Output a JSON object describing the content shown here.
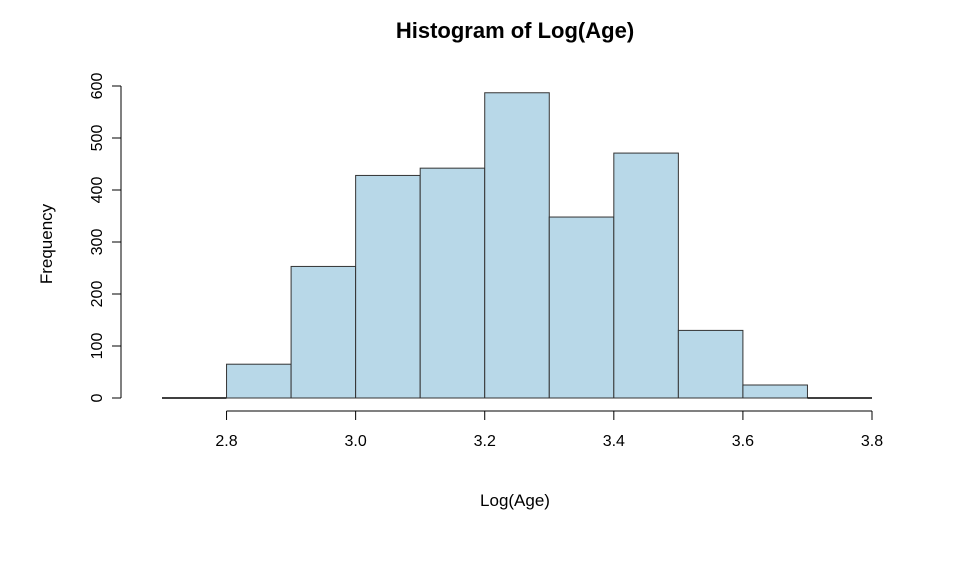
{
  "chart_data": {
    "type": "bar",
    "title": "Histogram of Log(Age)",
    "xlabel": "Log(Age)",
    "ylabel": "Frequency",
    "bin_edges": [
      2.7,
      2.8,
      2.9,
      3.0,
      3.1,
      3.2,
      3.3,
      3.4,
      3.5,
      3.6,
      3.7,
      3.8
    ],
    "values": [
      0,
      65,
      253,
      428,
      442,
      587,
      348,
      471,
      130,
      25,
      0
    ],
    "xlim": [
      2.7,
      3.8
    ],
    "ylim": [
      0,
      600
    ],
    "x_ticks": [
      2.8,
      3.0,
      3.2,
      3.4,
      3.6,
      3.8
    ],
    "x_tick_labels": [
      "2.8",
      "3.0",
      "3.2",
      "3.4",
      "3.6",
      "3.8"
    ],
    "y_ticks": [
      0,
      100,
      200,
      300,
      400,
      500,
      600
    ],
    "y_tick_labels": [
      "0",
      "100",
      "200",
      "300",
      "400",
      "500",
      "600"
    ],
    "bar_color": "#b8d8e8",
    "bar_edge_color": "#333333",
    "grid": false
  }
}
